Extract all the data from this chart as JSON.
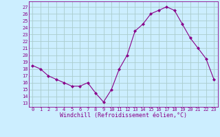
{
  "x": [
    0,
    1,
    2,
    3,
    4,
    5,
    6,
    7,
    8,
    9,
    10,
    11,
    12,
    13,
    14,
    15,
    16,
    17,
    18,
    19,
    20,
    21,
    22,
    23
  ],
  "y": [
    18.5,
    18,
    17,
    16.5,
    16,
    15.5,
    15.5,
    16,
    14.5,
    13.2,
    15,
    18,
    20,
    23.5,
    24.5,
    26,
    26.5,
    27,
    26.5,
    24.5,
    22.5,
    21,
    19.5,
    16.5
  ],
  "line_color": "#880088",
  "marker": "D",
  "marker_size": 2.0,
  "bg_color": "#cceeff",
  "grid_color": "#aacccc",
  "xlabel": "Windchill (Refroidissement éolien,°C)",
  "xlabel_color": "#880088",
  "ylabel_ticks": [
    13,
    14,
    15,
    16,
    17,
    18,
    19,
    20,
    21,
    22,
    23,
    24,
    25,
    26,
    27
  ],
  "ylim": [
    12.5,
    27.8
  ],
  "xlim": [
    -0.5,
    23.5
  ],
  "tick_label_color": "#880088",
  "spine_color": "#880088",
  "tick_fontsize": 5.0,
  "xlabel_fontsize": 6.0
}
